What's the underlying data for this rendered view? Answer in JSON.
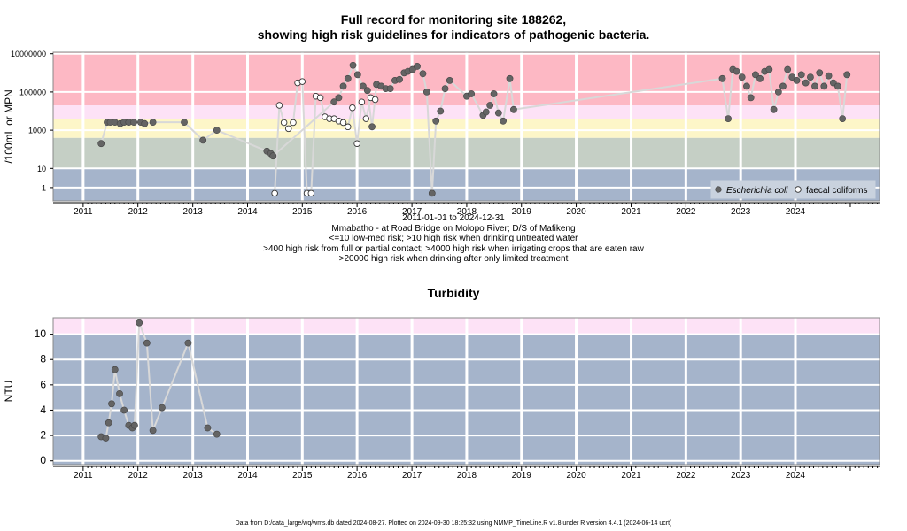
{
  "page": {
    "title_line1": "Full record for monitoring site 188262,",
    "title_line2": "showing high risk guidelines for indicators of pathogenic bacteria.",
    "caption": [
      "2011-01-01 to 2024-12-31",
      "Mmabatho - at Road Bridge on Molopo River; D/S of Mafikeng",
      "<=10 low-med risk; >10 high risk when drinking untreated water",
      ">400 high risk from full or partial contact; >4000 high risk when irrigating crops that are eaten raw",
      ">20000 high risk when drinking after only limited treatment"
    ],
    "footer": "Data from D:/data_large/wq/wms.db dated 2024-08-27. Plotted on 2024-09-30 18:25:32 using NMMP_TimeLine.R v1.8 under R version 4.4.1 (2024-06-14 ucrt)"
  },
  "chart_data": [
    {
      "type": "scatter",
      "title": "Full record for monitoring site 188262, showing high risk guidelines for indicators of pathogenic bacteria.",
      "ylabel": "/100mL or MPN",
      "yscale": "log",
      "xlim": [
        "2010-06-15",
        "2025-07-15"
      ],
      "ylim": [
        0.2,
        12000000
      ],
      "x_ticks": [
        "2011",
        "2012",
        "2013",
        "2014",
        "2015",
        "2016",
        "2017",
        "2018",
        "2019",
        "2020",
        "2021",
        "2022",
        "2023",
        "2024"
      ],
      "y_ticks": [
        "1",
        "10",
        "1000",
        "100000",
        "10000000"
      ],
      "bands": [
        {
          "from": 0.2,
          "to": 10,
          "color": "#a5b4cb"
        },
        {
          "from": 10,
          "to": 400,
          "color": "#c5cfc5"
        },
        {
          "from": 400,
          "to": 4000,
          "color": "#fdf6c8"
        },
        {
          "from": 4000,
          "to": 20000,
          "color": "#fde2f6"
        },
        {
          "from": 20000,
          "to": 12000000,
          "color": "#fdb8c4"
        }
      ],
      "grid": true,
      "legend_position": "bottom-right",
      "series": [
        {
          "name": "Escherichia coli",
          "marker": "filled",
          "color": "#646464",
          "points": [
            [
              "2011-05-01",
              200
            ],
            [
              "2011-06-10",
              2600
            ],
            [
              "2011-07-01",
              2600
            ],
            [
              "2011-08-01",
              2600
            ],
            [
              "2011-09-05",
              2200
            ],
            [
              "2011-10-01",
              2600
            ],
            [
              "2011-11-01",
              2600
            ],
            [
              "2011-12-05",
              2600
            ],
            [
              "2012-01-20",
              2600
            ],
            [
              "2012-02-15",
              2200
            ],
            [
              "2012-04-10",
              2600
            ],
            [
              "2012-11-05",
              2600
            ],
            [
              "2013-03-10",
              300
            ],
            [
              "2013-06-10",
              1000
            ],
            [
              "2014-05-10",
              80
            ],
            [
              "2014-06-05",
              60
            ],
            [
              "2014-06-20",
              45
            ],
            [
              "2015-08-01",
              30000
            ],
            [
              "2015-09-01",
              50000
            ],
            [
              "2015-10-01",
              200000
            ],
            [
              "2015-11-01",
              500000
            ],
            [
              "2015-12-05",
              2500000
            ],
            [
              "2016-01-05",
              800000
            ],
            [
              "2016-02-10",
              200000
            ],
            [
              "2016-03-10",
              120000
            ],
            [
              "2016-04-10",
              1500
            ],
            [
              "2016-05-10",
              250000
            ],
            [
              "2016-06-10",
              200000
            ],
            [
              "2016-07-10",
              150000
            ],
            [
              "2016-08-10",
              150000
            ],
            [
              "2016-09-10",
              400000
            ],
            [
              "2016-10-10",
              450000
            ],
            [
              "2016-11-10",
              1000000
            ],
            [
              "2016-12-05",
              1200000
            ],
            [
              "2017-01-05",
              1500000
            ],
            [
              "2017-02-05",
              2200000
            ],
            [
              "2017-03-15",
              900000
            ],
            [
              "2017-04-10",
              100000
            ],
            [
              "2017-05-15",
              0.5
            ],
            [
              "2017-06-10",
              3000
            ],
            [
              "2017-07-10",
              10000
            ],
            [
              "2017-08-10",
              150000
            ],
            [
              "2017-09-10",
              400000
            ],
            [
              "2018-01-01",
              60000
            ],
            [
              "2018-02-01",
              80000
            ],
            [
              "2018-04-20",
              6000
            ],
            [
              "2018-05-10",
              9000
            ],
            [
              "2018-06-05",
              20000
            ],
            [
              "2018-07-01",
              80000
            ],
            [
              "2018-08-01",
              8000
            ],
            [
              "2018-09-01",
              3000
            ],
            [
              "2018-10-15",
              500000
            ],
            [
              "2018-11-10",
              12000
            ],
            [
              "2022-09-01",
              500000
            ],
            [
              "2022-10-10",
              4000
            ],
            [
              "2022-11-10",
              1500000
            ],
            [
              "2022-12-05",
              1200000
            ],
            [
              "2023-01-10",
              600000
            ],
            [
              "2023-02-10",
              200000
            ],
            [
              "2023-03-10",
              50000
            ],
            [
              "2023-04-10",
              800000
            ],
            [
              "2023-05-10",
              500000
            ],
            [
              "2023-06-10",
              1200000
            ],
            [
              "2023-07-10",
              1500000
            ],
            [
              "2023-08-10",
              12000
            ],
            [
              "2023-09-10",
              100000
            ],
            [
              "2023-10-10",
              200000
            ],
            [
              "2023-11-10",
              1500000
            ],
            [
              "2023-12-10",
              600000
            ],
            [
              "2024-01-10",
              400000
            ],
            [
              "2024-02-10",
              800000
            ],
            [
              "2024-03-10",
              300000
            ],
            [
              "2024-04-10",
              600000
            ],
            [
              "2024-05-10",
              200000
            ],
            [
              "2024-06-10",
              1000000
            ],
            [
              "2024-07-10",
              200000
            ],
            [
              "2024-08-10",
              700000
            ],
            [
              "2024-09-10",
              300000
            ],
            [
              "2024-10-10",
              200000
            ],
            [
              "2024-11-10",
              4000
            ],
            [
              "2024-12-10",
              800000
            ]
          ]
        },
        {
          "name": "faecal coliforms",
          "marker": "open",
          "color": "#ffffff",
          "points": [
            [
              "2014-07-01",
              0.5
            ],
            [
              "2014-08-01",
              20000
            ],
            [
              "2014-09-01",
              2500
            ],
            [
              "2014-10-01",
              1200
            ],
            [
              "2014-11-01",
              2500
            ],
            [
              "2014-12-01",
              300000
            ],
            [
              "2015-01-01",
              350000
            ],
            [
              "2015-02-01",
              0.5
            ],
            [
              "2015-03-01",
              0.5
            ],
            [
              "2015-04-01",
              60000
            ],
            [
              "2015-05-01",
              50000
            ],
            [
              "2015-06-01",
              5000
            ],
            [
              "2015-07-01",
              4000
            ],
            [
              "2015-08-01",
              4000
            ],
            [
              "2015-09-01",
              3000
            ],
            [
              "2015-10-01",
              2500
            ],
            [
              "2015-11-01",
              1500
            ],
            [
              "2015-12-01",
              15000
            ],
            [
              "2016-01-01",
              200
            ],
            [
              "2016-02-01",
              30000
            ],
            [
              "2016-03-01",
              4000
            ],
            [
              "2016-04-01",
              50000
            ],
            [
              "2016-05-01",
              40000
            ]
          ]
        }
      ]
    },
    {
      "type": "scatter",
      "title": "Turbidity",
      "ylabel": "NTU",
      "xlim": [
        "2010-06-15",
        "2025-07-15"
      ],
      "ylim": [
        -0.3,
        11.3
      ],
      "x_ticks": [
        "2011",
        "2012",
        "2013",
        "2014",
        "2015",
        "2016",
        "2017",
        "2018",
        "2019",
        "2020",
        "2021",
        "2022",
        "2023",
        "2024"
      ],
      "y_ticks": [
        "0",
        "2",
        "4",
        "6",
        "8",
        "10"
      ],
      "bands": [
        {
          "from": -0.3,
          "to": 10,
          "color": "#a5b4cb"
        },
        {
          "from": 10,
          "to": 11.3,
          "color": "#fde2f6"
        }
      ],
      "grid": true,
      "series": [
        {
          "name": "",
          "marker": "filled",
          "color": "#646464",
          "points": [
            [
              "2011-05-01",
              1.9
            ],
            [
              "2011-06-01",
              1.8
            ],
            [
              "2011-06-20",
              3.0
            ],
            [
              "2011-07-10",
              4.5
            ],
            [
              "2011-08-01",
              7.2
            ],
            [
              "2011-09-01",
              5.3
            ],
            [
              "2011-10-01",
              4.0
            ],
            [
              "2011-11-01",
              2.8
            ],
            [
              "2011-11-25",
              2.6
            ],
            [
              "2011-12-10",
              2.8
            ],
            [
              "2012-01-10",
              10.9
            ],
            [
              "2012-03-01",
              9.3
            ],
            [
              "2012-04-10",
              2.4
            ],
            [
              "2012-06-10",
              4.2
            ],
            [
              "2012-12-01",
              9.3
            ],
            [
              "2013-04-10",
              2.6
            ],
            [
              "2013-06-10",
              2.1
            ]
          ]
        }
      ]
    }
  ]
}
